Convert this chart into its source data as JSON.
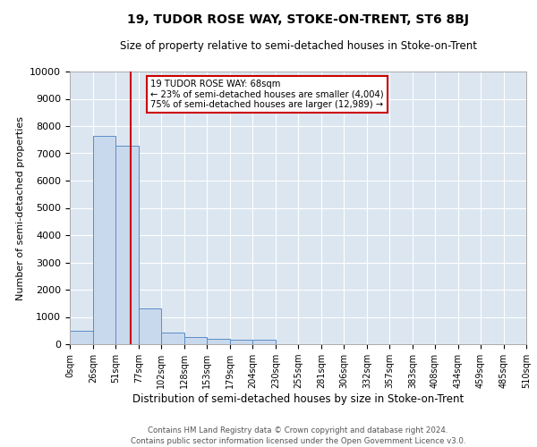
{
  "title": "19, TUDOR ROSE WAY, STOKE-ON-TRENT, ST6 8BJ",
  "subtitle": "Size of property relative to semi-detached houses in Stoke-on-Trent",
  "xlabel": "Distribution of semi-detached houses by size in Stoke-on-Trent",
  "ylabel": "Number of semi-detached properties",
  "footnote1": "Contains HM Land Registry data © Crown copyright and database right 2024.",
  "footnote2": "Contains public sector information licensed under the Open Government Licence v3.0.",
  "property_size": 68,
  "property_label": "19 TUDOR ROSE WAY: 68sqm",
  "pct_smaller": 23,
  "count_smaller": 4004,
  "pct_larger": 75,
  "count_larger": 12989,
  "bar_color": "#c9d9ed",
  "bar_edge_color": "#5b8dc8",
  "vline_color": "#cc0000",
  "annotation_box_color": "#cc0000",
  "background_color": "#dce6f1",
  "bin_edges": [
    0,
    26,
    51,
    77,
    102,
    128,
    153,
    179,
    204,
    230,
    255,
    281,
    306,
    332,
    357,
    383,
    408,
    434,
    459,
    485,
    510
  ],
  "bin_counts": [
    480,
    7650,
    7280,
    1300,
    420,
    250,
    200,
    170,
    170,
    0,
    0,
    0,
    0,
    0,
    0,
    0,
    0,
    0,
    0,
    0
  ],
  "ylim": [
    0,
    10000
  ],
  "yticks": [
    0,
    1000,
    2000,
    3000,
    4000,
    5000,
    6000,
    7000,
    8000,
    9000,
    10000
  ],
  "xtick_labels": [
    "0sqm",
    "26sqm",
    "51sqm",
    "77sqm",
    "102sqm",
    "128sqm",
    "153sqm",
    "179sqm",
    "204sqm",
    "230sqm",
    "255sqm",
    "281sqm",
    "306sqm",
    "332sqm",
    "357sqm",
    "383sqm",
    "408sqm",
    "434sqm",
    "459sqm",
    "485sqm",
    "510sqm"
  ]
}
